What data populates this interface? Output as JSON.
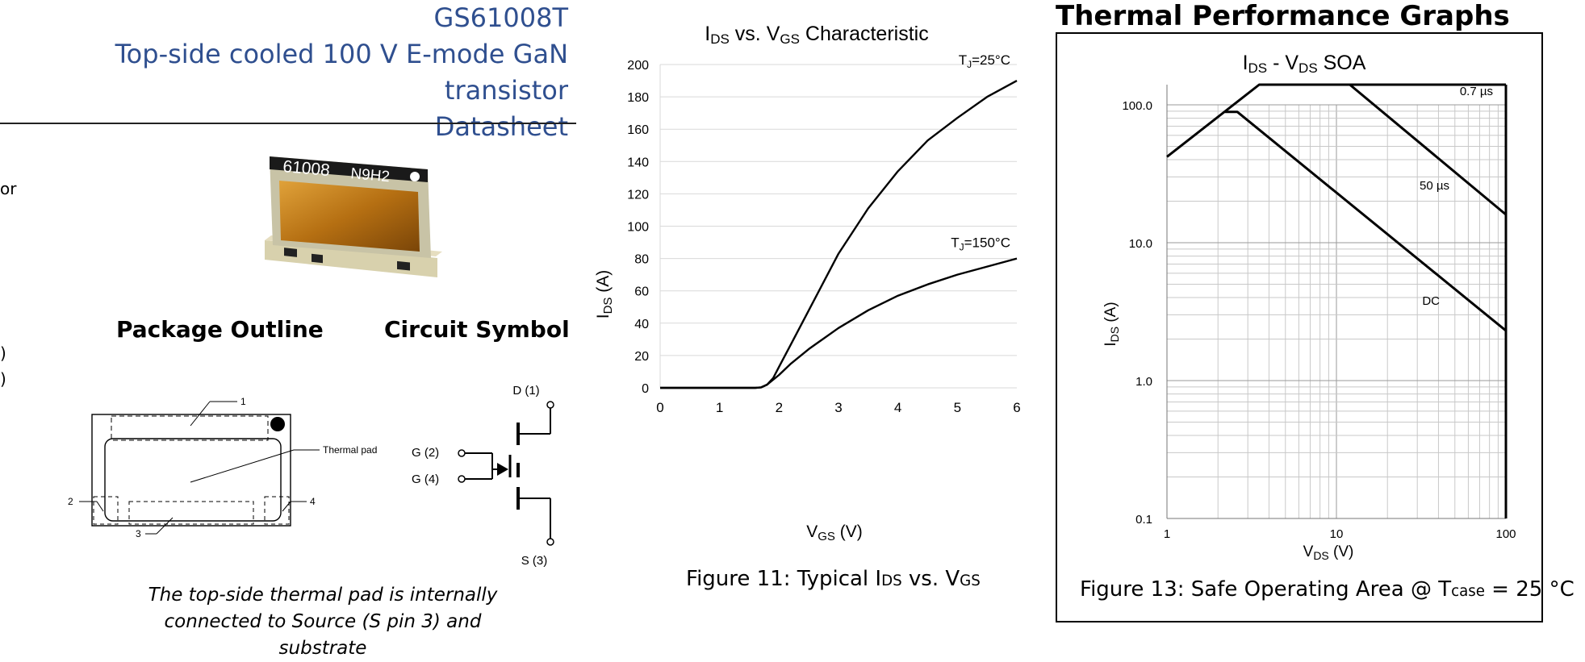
{
  "header": {
    "part_number": "GS61008T",
    "subtitle": "Top-side cooled 100 V E-mode GaN transistor",
    "doc_type": "Datasheet"
  },
  "left_fragments": [
    "or",
    ")",
    ")"
  ],
  "package": {
    "marking_top": "61008",
    "marking_code": "N9H2",
    "outline_title": "Package Outline",
    "symbol_title": "Circuit Symbol",
    "outline_labels": [
      "1",
      "2",
      "3",
      "4",
      "Thermal pad"
    ],
    "pins": {
      "drain": "D (1)",
      "gate2": "G (2)",
      "gate4": "G (4)",
      "source": "S (3)"
    },
    "note_line1": "The top-side thermal pad is internally",
    "note_line2": "connected to Source (S pin 3) and substrate"
  },
  "section_title": "Thermal Performance Graphs",
  "chart_data": [
    {
      "type": "line",
      "title": "IDS vs. VGS Characteristic",
      "xlabel": "VGS (V)",
      "ylabel": "IDS (A)",
      "xlim": [
        0,
        6
      ],
      "ylim": [
        0,
        200
      ],
      "xticks": [
        0,
        1,
        2,
        3,
        4,
        5,
        6
      ],
      "yticks": [
        0,
        20,
        40,
        60,
        80,
        100,
        120,
        140,
        160,
        180,
        200
      ],
      "tick_labels_x": [
        "0",
        "1",
        "2",
        "3",
        "4",
        "5",
        "6"
      ],
      "tick_labels_y": [
        "0",
        "20",
        "40",
        "60",
        "80",
        "100",
        "120",
        "140",
        "160",
        "180",
        "200"
      ],
      "grid": "horizontal",
      "series": [
        {
          "name": "TJ=25°C",
          "x": [
            0,
            1.6,
            1.7,
            1.8,
            1.9,
            2.0,
            2.2,
            2.5,
            3.0,
            3.5,
            4.0,
            4.5,
            5.0,
            5.5,
            6.0
          ],
          "y": [
            0,
            0,
            0.3,
            2,
            6,
            13,
            27,
            48,
            83,
            111,
            134,
            153,
            167,
            180,
            190
          ]
        },
        {
          "name": "TJ=150°C",
          "x": [
            0,
            1.6,
            1.7,
            1.8,
            1.9,
            2.0,
            2.2,
            2.5,
            3.0,
            3.5,
            4.0,
            4.5,
            5.0,
            5.5,
            6.0
          ],
          "y": [
            0,
            0,
            0.3,
            2,
            5,
            8,
            15,
            24,
            37,
            48,
            57,
            64,
            70,
            75,
            80
          ]
        }
      ],
      "caption": "Figure 11: Typical IDS vs. VGS"
    },
    {
      "type": "line",
      "title": "IDS - VDS SOA",
      "xlabel": "VDS (V)",
      "ylabel": "IDS (A)",
      "x_scale": "log",
      "y_scale": "log",
      "xlim": [
        1,
        100
      ],
      "ylim": [
        0.1,
        100
      ],
      "tick_labels_x": [
        "1",
        "10",
        "100"
      ],
      "tick_labels_y": [
        "0.1",
        "1.0",
        "10.0",
        "100.0"
      ],
      "xticks": [
        1,
        10,
        100
      ],
      "yticks": [
        0.1,
        1,
        10,
        100
      ],
      "grid": "both",
      "series": [
        {
          "name": "0.7 µs",
          "x": [
            1,
            3.5,
            100
          ],
          "y": [
            42,
            140,
            140
          ]
        },
        {
          "name": "50 µs",
          "x": [
            12,
            100
          ],
          "y": [
            140,
            16
          ]
        },
        {
          "name": "DC",
          "x": [
            2.2,
            2.6,
            100
          ],
          "y": [
            89,
            89,
            2.3
          ]
        }
      ],
      "caption": "Figure 13: Safe Operating Area @ Tcase = 25 °C"
    }
  ]
}
